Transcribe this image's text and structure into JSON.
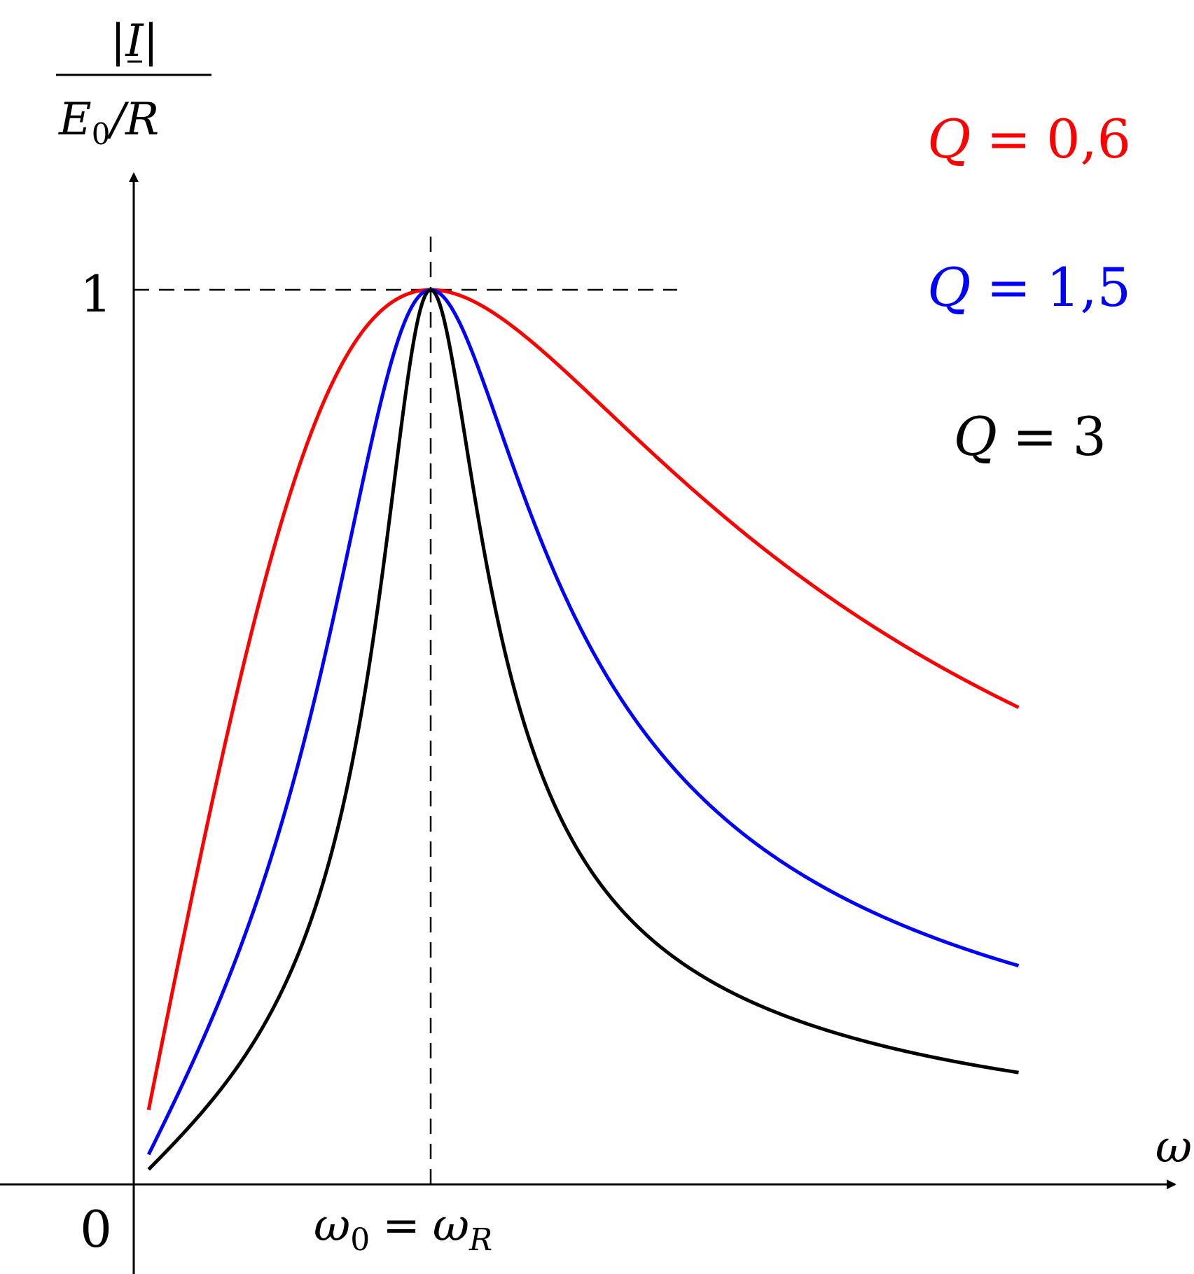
{
  "chart_data": {
    "type": "line",
    "ylabel": {
      "numerator": "|I|",
      "denominator_main": "E",
      "denominator_sub": "0",
      "denominator_rest": "/R"
    },
    "xlabel": "ω",
    "xticks": [
      {
        "value": 0,
        "label": "0"
      },
      {
        "value": 1,
        "label_main": "ω",
        "label_sub": "0",
        "label_eq": "=",
        "label_main2": "ω",
        "label_sub2": "R"
      }
    ],
    "yticks": [
      {
        "value": 1,
        "label": "1"
      }
    ],
    "xlim": [
      0,
      3.0
    ],
    "ylim": [
      0,
      1.0
    ],
    "reference_lines": {
      "x": 1,
      "y": 1
    },
    "grid": false,
    "legend_position": "top-right",
    "series": [
      {
        "name": "Q = 0,6",
        "q_label": "Q",
        "eq": "=",
        "q_value": "0,6",
        "Q": 0.6,
        "color": "#ff0000",
        "x_range": [
          0.05,
          2.98
        ]
      },
      {
        "name": "Q = 1,5",
        "q_label": "Q",
        "eq": "=",
        "q_value": "1,5",
        "Q": 1.5,
        "color": "#0000ff",
        "x_range": [
          0.05,
          2.98
        ]
      },
      {
        "name": "Q = 3",
        "q_label": "Q",
        "eq": "=",
        "q_value": "3",
        "Q": 3,
        "color": "#000000",
        "x_range": [
          0.05,
          2.98
        ]
      }
    ]
  }
}
